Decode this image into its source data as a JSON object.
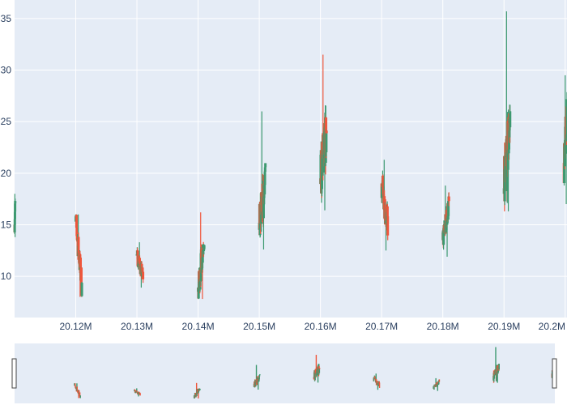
{
  "chart_data": {
    "type": "candlestick",
    "title": "",
    "xlabel": "",
    "ylabel": "",
    "x_tick_labels": [
      "20.12M",
      "20.13M",
      "20.14M",
      "20.15M",
      "20.16M",
      "20.17M",
      "20.18M",
      "20.19M",
      "20.2M"
    ],
    "x_tick_values": [
      20120000,
      20130000,
      20140000,
      20150000,
      20160000,
      20170000,
      20180000,
      20190000,
      20200000
    ],
    "y_tick_labels": [
      "10",
      "15",
      "20",
      "25",
      "30",
      "35"
    ],
    "y_tick_values": [
      10,
      15,
      20,
      25,
      30,
      35
    ],
    "xlim": [
      20110000,
      20200300
    ],
    "ylim": [
      6.0,
      36.8
    ],
    "grid": true,
    "colors": {
      "increasing": "#3D9970",
      "decreasing": "#EF553B",
      "plot_bg": "#E5ECF6",
      "grid": "#ffffff",
      "text": "#2a3f5f"
    },
    "rangeslider": true,
    "clusters": [
      {
        "x_start": 20110000,
        "x_end": 20110100,
        "low": 13.8,
        "high": 18.0,
        "open": 15.0,
        "close": 17.0
      },
      {
        "x_start": 20120000,
        "x_end": 20121000,
        "low": 8.0,
        "high": 16.0,
        "open": 15.3,
        "close": 9.0
      },
      {
        "x_start": 20130000,
        "x_end": 20131000,
        "low": 8.9,
        "high": 13.3,
        "open": 12.0,
        "close": 10.0
      },
      {
        "x_start": 20140000,
        "x_end": 20141000,
        "low": 7.8,
        "high": 16.2,
        "open": 8.5,
        "close": 14.0
      },
      {
        "x_start": 20150000,
        "x_end": 20151000,
        "low": 12.6,
        "high": 26.0,
        "open": 14.5,
        "close": 19.0
      },
      {
        "x_start": 20160000,
        "x_end": 20161000,
        "low": 16.4,
        "high": 31.5,
        "open": 19.5,
        "close": 24.0
      },
      {
        "x_start": 20170000,
        "x_end": 20171000,
        "low": 12.5,
        "high": 21.3,
        "open": 19.0,
        "close": 15.0
      },
      {
        "x_start": 20180000,
        "x_end": 20181000,
        "low": 11.9,
        "high": 18.8,
        "open": 13.5,
        "close": 17.0
      },
      {
        "x_start": 20190000,
        "x_end": 20191000,
        "low": 16.3,
        "high": 35.7,
        "open": 18.0,
        "close": 25.0
      },
      {
        "x_start": 20199800,
        "x_end": 20200300,
        "low": 17.0,
        "high": 29.5,
        "open": 21.0,
        "close": 26.0
      }
    ]
  }
}
